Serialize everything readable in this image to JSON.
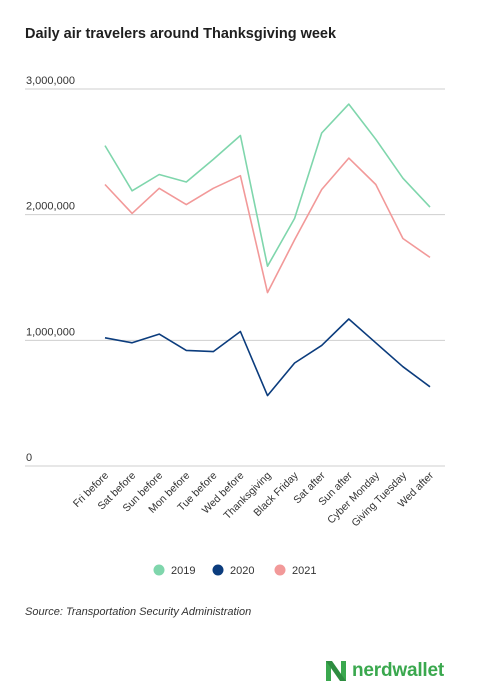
{
  "chart_data": {
    "type": "line",
    "title": "Daily air travelers around Thanksgiving week",
    "categories": [
      "Fri before",
      "Sat before",
      "Sun before",
      "Mon before",
      "Tue before",
      "Wed before",
      "Thanksgiving",
      "Black Friday",
      "Sat after",
      "Sun after",
      "Cyber Monday",
      "Giving Tuesday",
      "Wed after"
    ],
    "series": [
      {
        "name": "2019",
        "color": "#7fd6ac",
        "values": [
          2550000,
          2190000,
          2320000,
          2260000,
          2440000,
          2630000,
          1590000,
          1970000,
          2650000,
          2880000,
          2600000,
          2290000,
          2060000
        ]
      },
      {
        "name": "2020",
        "color": "#0b3c7d",
        "values": [
          1020000,
          980000,
          1050000,
          920000,
          910000,
          1070000,
          560000,
          820000,
          960000,
          1170000,
          980000,
          790000,
          630000
        ]
      },
      {
        "name": "2021",
        "color": "#f29999",
        "values": [
          2240000,
          2010000,
          2210000,
          2080000,
          2210000,
          2310000,
          1380000,
          1800000,
          2200000,
          2450000,
          2240000,
          1810000,
          1660000
        ]
      }
    ],
    "yticks": [
      0,
      1000000,
      2000000,
      3000000
    ],
    "ytick_labels": [
      "0",
      "1,000,000",
      "2,000,000",
      "3,000,000"
    ],
    "ylim": [
      0,
      3000000
    ],
    "grid": true,
    "legend_position": "bottom-center"
  },
  "source": "Source: Transportation Security Administration",
  "brand": {
    "name": "nerdwallet",
    "color": "#3aa84e"
  }
}
